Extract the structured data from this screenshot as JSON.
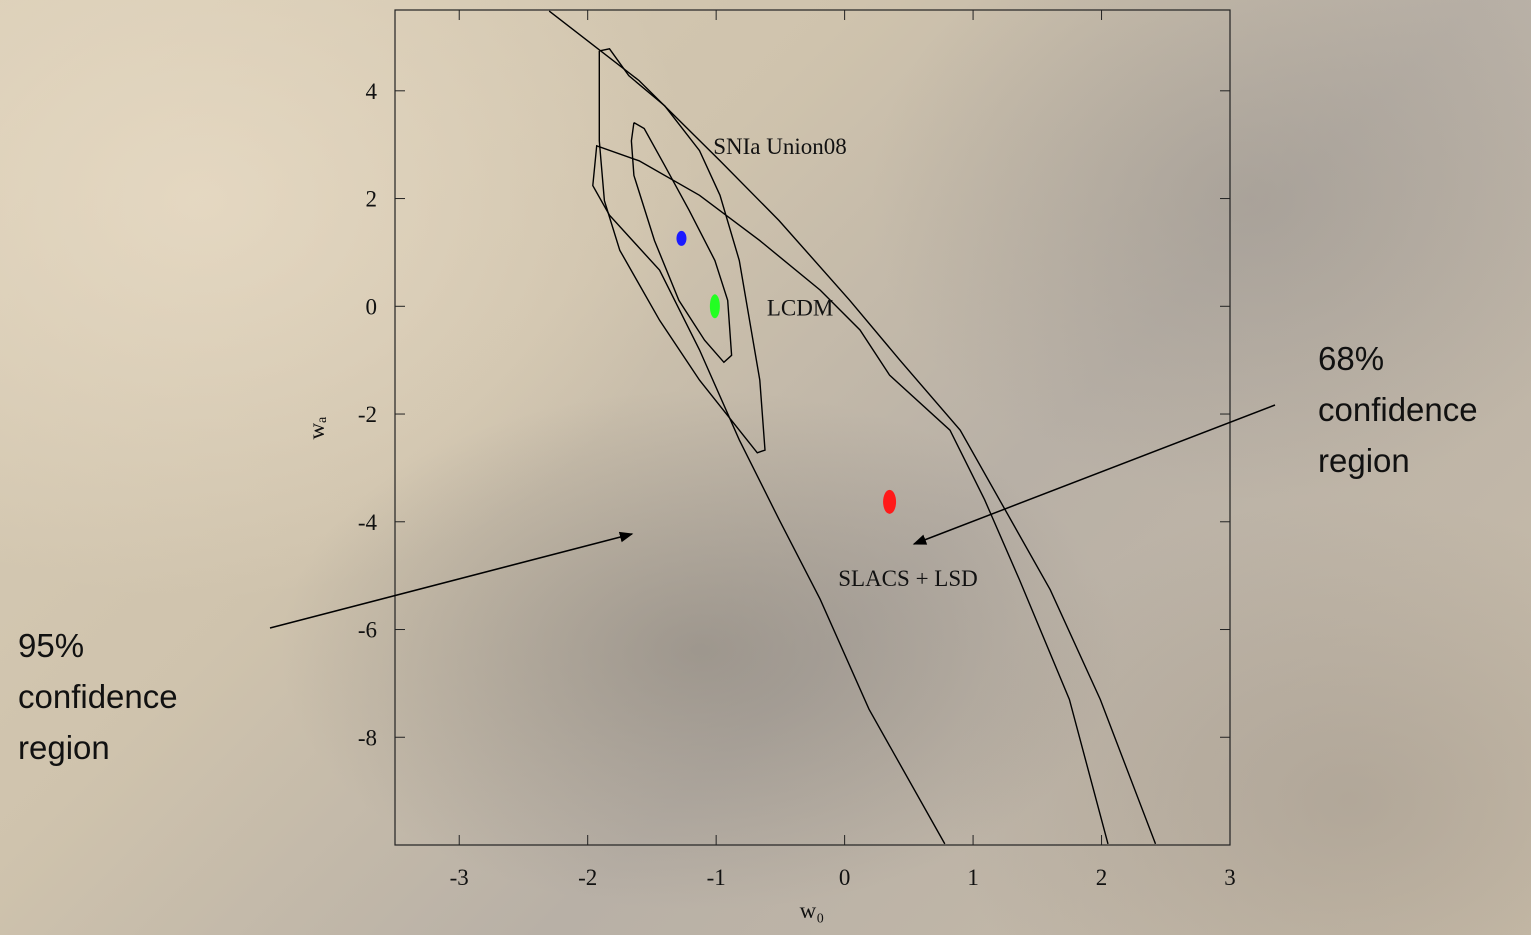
{
  "chart_data": {
    "type": "contour",
    "xlabel": "w₀",
    "ylabel": "wₐ",
    "xlim": [
      -3.5,
      3
    ],
    "ylim": [
      -10,
      5.5
    ],
    "xticks": [
      -3,
      -2,
      -1,
      0,
      1,
      2,
      3
    ],
    "yticks": [
      -8,
      -6,
      -4,
      -2,
      0,
      2,
      4
    ],
    "series": [
      {
        "name": "SNIa Union08",
        "color": "#000000",
        "contours": [
          {
            "x": [
              -1.91,
              -1.83,
              -1.68,
              -1.4,
              -1.13,
              -0.97,
              -0.82,
              -0.66,
              -0.62,
              -0.68,
              -0.82,
              -1.13,
              -1.44,
              -1.75,
              -1.87,
              -1.91,
              -1.91
            ],
            "y": [
              4.74,
              4.78,
              4.28,
              3.72,
              2.89,
              2.06,
              0.85,
              -1.37,
              -2.67,
              -2.72,
              -2.3,
              -1.37,
              -0.26,
              1.04,
              1.96,
              3.07,
              4.74
            ]
          },
          {
            "x": [
              -1.64,
              -1.56,
              -1.4,
              -1.21,
              -1.01,
              -0.91,
              -0.88,
              -0.94,
              -1.09,
              -1.29,
              -1.48,
              -1.64,
              -1.66,
              -1.64
            ],
            "y": [
              3.41,
              3.3,
              2.61,
              1.78,
              0.85,
              0.11,
              -0.91,
              -1.04,
              -0.63,
              0.11,
              1.22,
              2.43,
              3.07,
              3.41
            ]
          }
        ]
      },
      {
        "name": "SLACS + LSD",
        "color": "#000000",
        "contours": [
          {
            "x": [
              -2.3,
              -1.6,
              -0.97,
              -0.51,
              0.04,
              0.43,
              0.9,
              1.25,
              1.6,
              1.99,
              2.42
            ],
            "y": [
              5.48,
              4.19,
              2.7,
              1.59,
              0.11,
              -1.0,
              -2.3,
              -3.78,
              -5.26,
              -7.3,
              -9.98
            ]
          },
          {
            "x": [
              0.78,
              0.19,
              -0.19,
              -0.51,
              -0.82,
              -1.13,
              -1.44,
              -1.83,
              -1.96,
              -1.93,
              -1.6,
              -1.13,
              -0.66,
              -0.19,
              0.12,
              0.35,
              0.82,
              1.09,
              1.36,
              1.75,
              2.05
            ],
            "y": [
              -9.98,
              -7.48,
              -5.44,
              -3.96,
              -2.48,
              -0.81,
              0.67,
              1.69,
              2.24,
              2.98,
              2.7,
              2.06,
              1.22,
              0.3,
              -0.44,
              -1.28,
              -2.3,
              -3.59,
              -5.07,
              -7.3,
              -9.98
            ]
          }
        ]
      }
    ],
    "points": [
      {
        "x": -1.27,
        "y": 1.26,
        "color": "#1a1aff"
      },
      {
        "name": "LCDM",
        "x": -1.01,
        "y": 0,
        "color": "#22ff22"
      },
      {
        "x": 0.35,
        "y": -3.63,
        "color": "#ff1a1a"
      }
    ],
    "annotations": [
      {
        "lines": [
          "68%",
          "confidence",
          "region"
        ]
      },
      {
        "lines": [
          "95%",
          "confidence",
          "region"
        ]
      }
    ]
  }
}
